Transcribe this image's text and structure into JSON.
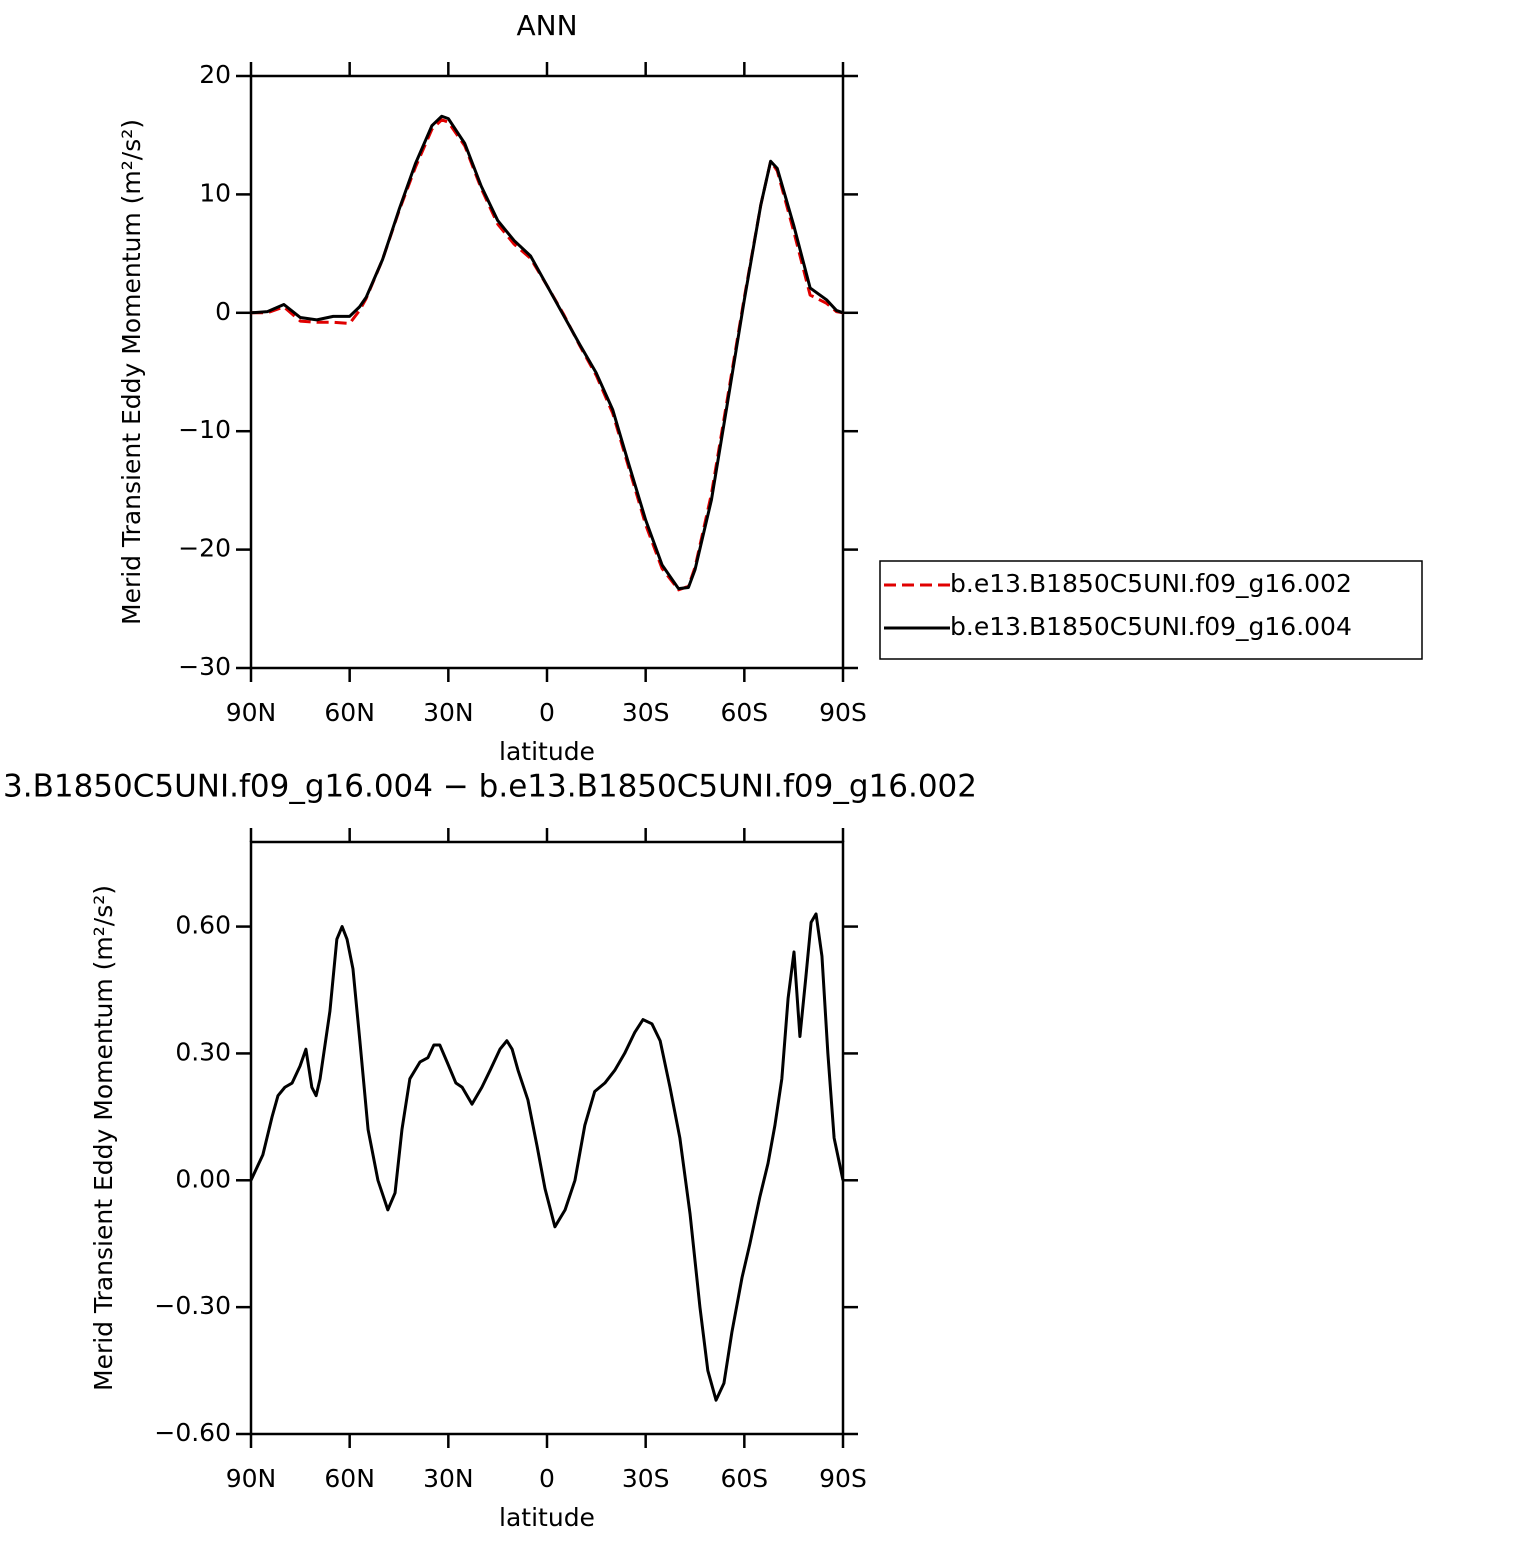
{
  "chart_data": [
    {
      "type": "line",
      "title": "ANN",
      "xlabel": "latitude",
      "ylabel": "Merid Transient Eddy Momentum (m²/s²)",
      "x": [
        90,
        85,
        80,
        75,
        70,
        65,
        60,
        57,
        55,
        50,
        45,
        40,
        35,
        32,
        30,
        25,
        20,
        15,
        10,
        5,
        0,
        -5,
        -10,
        -15,
        -20,
        -25,
        -30,
        -35,
        -40,
        -43,
        -45,
        -50,
        -55,
        -60,
        -65,
        -68,
        -70,
        -75,
        -80,
        -85,
        -88,
        -90
      ],
      "series": [
        {
          "name": "b.e13.B1850C5UNI.f09_g16.002",
          "color": "#e00000",
          "line_style": "dashed",
          "values": [
            0,
            0.0,
            0.5,
            -0.7,
            -0.8,
            -0.8,
            -0.9,
            0.2,
            1.2,
            4.5,
            8.6,
            12.3,
            15.5,
            16.3,
            16.1,
            14.1,
            10.5,
            7.5,
            5.8,
            4.6,
            2.3,
            -0.1,
            -2.8,
            -5.3,
            -8.5,
            -13.2,
            -17.9,
            -21.6,
            -23.4,
            -23.1,
            -21.5,
            -15.3,
            -7.0,
            1.3,
            9.1,
            12.8,
            12.0,
            6.9,
            1.5,
            0.8,
            0.1,
            0
          ]
        },
        {
          "name": "b.e13.B1850C5UNI.f09_g16.004",
          "color": "#000000",
          "line_style": "solid",
          "values": [
            0,
            0.1,
            0.7,
            -0.4,
            -0.6,
            -0.3,
            -0.3,
            0.5,
            1.3,
            4.5,
            8.7,
            12.6,
            15.8,
            16.6,
            16.4,
            14.3,
            10.7,
            7.8,
            6.1,
            4.8,
            2.3,
            -0.2,
            -2.7,
            -5.1,
            -8.2,
            -12.9,
            -17.5,
            -21.3,
            -23.3,
            -23.2,
            -21.7,
            -15.8,
            -7.4,
            1.1,
            9.1,
            12.8,
            12.2,
            7.4,
            2.1,
            1.1,
            0.2,
            0
          ]
        }
      ],
      "xlim": [
        90,
        -90
      ],
      "xticks": [
        {
          "value": 90,
          "label": "90N"
        },
        {
          "value": 60,
          "label": "60N"
        },
        {
          "value": 30,
          "label": "30N"
        },
        0,
        {
          "value": -30,
          "label": "30S"
        },
        {
          "value": -60,
          "label": "60S"
        },
        {
          "value": -90,
          "label": "90S"
        }
      ],
      "ylim": [
        -30,
        20
      ],
      "yticks": [
        {
          "value": -30,
          "label": "−30"
        },
        {
          "value": -20,
          "label": "−20"
        },
        {
          "value": -10,
          "label": "−10"
        },
        0,
        10,
        20
      ],
      "legend": "right"
    },
    {
      "type": "line",
      "title": "3.B1850C5UNI.f09_g16.004 − b.e13.B1850C5UNI.f09_g16.002",
      "xlabel": "latitude",
      "ylabel": "Merid Transient Eddy Momentum (m²/s²)",
      "x": [
        90,
        86.4,
        83.6,
        81.8,
        79.7,
        77.5,
        75.1,
        73.3,
        71.5,
        70.2,
        69.0,
        66,
        63.9,
        62.3,
        60.8,
        59,
        56.9,
        54.4,
        51.4,
        48.4,
        46.2,
        44.1,
        41.7,
        38.6,
        36.2,
        34.4,
        32.6,
        30.4,
        27.7,
        25.8,
        22.8,
        19.8,
        17.3,
        14.3,
        12.2,
        10.6,
        8.8,
        5.8,
        3.0,
        0.6,
        -2.4,
        -5.5,
        -8.5,
        -11.5,
        -14.5,
        -17.6,
        -20.6,
        -23.6,
        -26.7,
        -29.2,
        -31.9,
        -34.4,
        -37.4,
        -40.4,
        -43.5,
        -46.5,
        -48.9,
        -51.4,
        -53.8,
        -56.2,
        -59.3,
        -61.7,
        -64.7,
        -67.2,
        -69.3,
        -71.4,
        -73.3,
        -75.1,
        -76.9,
        -78.7,
        -80.3,
        -81.8,
        -83.6,
        -85.4,
        -87.3,
        -90
      ],
      "values": [
        0.0,
        0.06,
        0.15,
        0.2,
        0.22,
        0.23,
        0.27,
        0.31,
        0.22,
        0.2,
        0.24,
        0.4,
        0.57,
        0.6,
        0.57,
        0.5,
        0.33,
        0.12,
        0.0,
        -0.07,
        -0.03,
        0.12,
        0.24,
        0.28,
        0.29,
        0.32,
        0.32,
        0.28,
        0.23,
        0.22,
        0.18,
        0.22,
        0.26,
        0.31,
        0.33,
        0.31,
        0.26,
        0.19,
        0.08,
        -0.02,
        -0.11,
        -0.07,
        0.0,
        0.13,
        0.21,
        0.23,
        0.26,
        0.3,
        0.35,
        0.38,
        0.37,
        0.33,
        0.22,
        0.1,
        -0.08,
        -0.3,
        -0.45,
        -0.52,
        -0.48,
        -0.36,
        -0.23,
        -0.15,
        -0.04,
        0.04,
        0.13,
        0.24,
        0.43,
        0.54,
        0.34,
        0.48,
        0.61,
        0.63,
        0.53,
        0.3,
        0.1,
        0.0
      ],
      "color": "#000000",
      "xlim": [
        90,
        -90
      ],
      "xticks": [
        {
          "value": 90,
          "label": "90N"
        },
        {
          "value": 60,
          "label": "60N"
        },
        {
          "value": 30,
          "label": "30N"
        },
        0,
        {
          "value": -30,
          "label": "30S"
        },
        {
          "value": -60,
          "label": "60S"
        },
        {
          "value": -90,
          "label": "90S"
        }
      ],
      "ylim": [
        -0.6,
        0.8
      ],
      "yticks": [
        {
          "value": -0.6,
          "label": "−0.60"
        },
        {
          "value": -0.3,
          "label": "−0.30"
        },
        {
          "value": 0,
          "label": "0.00"
        },
        {
          "value": 0.3,
          "label": "0.30"
        },
        {
          "value": 0.6,
          "label": "0.60"
        }
      ]
    }
  ]
}
